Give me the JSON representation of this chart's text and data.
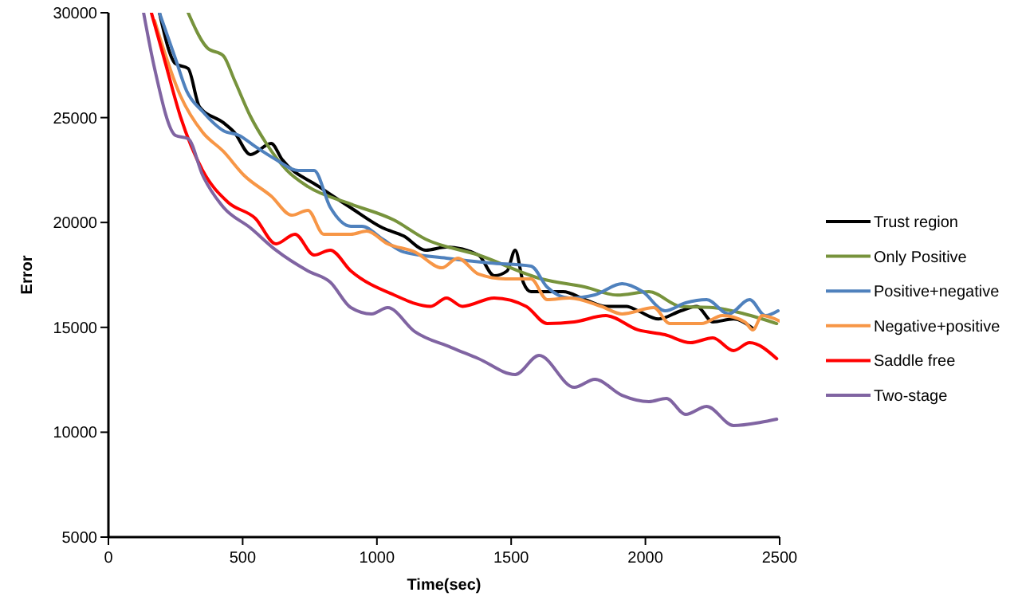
{
  "chart_data": {
    "type": "line",
    "xlabel": "Time(sec)",
    "ylabel": "Error",
    "xlim": [
      0,
      2500
    ],
    "xticks": [
      0,
      500,
      1000,
      1500,
      2000,
      2500
    ],
    "ylim": [
      5000,
      30000
    ],
    "yticks": [
      5000,
      10000,
      15000,
      20000,
      25000,
      30000
    ],
    "grid": false,
    "legend": "right",
    "line_style": "solid",
    "marker": "none",
    "series": [
      {
        "name": "Trust region",
        "color": "#000000",
        "x": [
          190,
          250,
          297,
          339,
          428,
          469,
          529,
          606,
          647,
          784,
          903,
          1022,
          1099,
          1182,
          1259,
          1378,
          1437,
          1485,
          1515,
          1545,
          1574,
          1693,
          1776,
          1853,
          1930,
          1972,
          2049,
          2132,
          2191,
          2251,
          2328,
          2400
        ],
        "values": [
          30000,
          27570,
          27340,
          25520,
          24760,
          24300,
          23240,
          23770,
          23000,
          21710,
          20700,
          19740,
          19360,
          18680,
          18830,
          18450,
          17460,
          17690,
          18680,
          17150,
          16700,
          16700,
          16320,
          16000,
          16000,
          15790,
          15400,
          15790,
          16000,
          15260,
          15400,
          14950
        ]
      },
      {
        "name": "Only Positive",
        "color": "#77933c",
        "x": [
          297,
          368,
          428,
          469,
          529,
          588,
          665,
          743,
          903,
          1063,
          1182,
          1378,
          1616,
          1776,
          1895,
          2013,
          2132,
          2251,
          2370,
          2489
        ],
        "values": [
          30000,
          28330,
          27950,
          26800,
          25060,
          23770,
          22480,
          21710,
          20880,
          20120,
          19200,
          18450,
          17300,
          16920,
          16540,
          16700,
          16000,
          15940,
          15640,
          15180
        ]
      },
      {
        "name": "Positive+negative",
        "color": "#4f81bd",
        "x": [
          190,
          250,
          291,
          351,
          428,
          487,
          547,
          624,
          707,
          766,
          826,
          903,
          944,
          1022,
          1099,
          1259,
          1420,
          1574,
          1634,
          1717,
          1812,
          1913,
          1990,
          2073,
          2150,
          2228,
          2310,
          2388,
          2447,
          2494
        ],
        "values": [
          30000,
          27800,
          26280,
          25290,
          24380,
          24150,
          23620,
          23000,
          22480,
          22480,
          20730,
          19820,
          19820,
          19200,
          18600,
          18300,
          18070,
          17920,
          16920,
          16400,
          16550,
          17080,
          16700,
          15790,
          16170,
          16320,
          15640,
          16320,
          15560,
          15790
        ]
      },
      {
        "name": "Negative+positive",
        "color": "#f79646",
        "x": [
          172,
          268,
          351,
          428,
          505,
          606,
          683,
          743,
          802,
          903,
          962,
          1040,
          1141,
          1242,
          1301,
          1378,
          1479,
          1574,
          1634,
          1717,
          1836,
          1913,
          2031,
          2091,
          2209,
          2287,
          2370,
          2400,
          2435,
          2500
        ],
        "values": [
          29620,
          26050,
          24300,
          23390,
          22250,
          21260,
          20350,
          20580,
          19440,
          19440,
          19590,
          18980,
          18600,
          17840,
          18300,
          17540,
          17310,
          17310,
          16320,
          16400,
          16000,
          15640,
          15940,
          15180,
          15180,
          15560,
          15260,
          14880,
          15560,
          15300
        ]
      },
      {
        "name": "Saddle free",
        "color": "#ff0000",
        "x": [
          160,
          208,
          268,
          351,
          446,
          547,
          624,
          695,
          766,
          826,
          903,
          1063,
          1200,
          1259,
          1319,
          1437,
          1556,
          1634,
          1735,
          1853,
          1972,
          2073,
          2168,
          2251,
          2328,
          2388,
          2489
        ],
        "values": [
          30000,
          27800,
          25060,
          22480,
          20960,
          20200,
          18980,
          19440,
          18450,
          18680,
          17690,
          16550,
          16000,
          16400,
          16000,
          16400,
          16000,
          15180,
          15260,
          15560,
          14880,
          14650,
          14270,
          14500,
          13890,
          14270,
          13510
        ]
      },
      {
        "name": "Two-stage",
        "color": "#8064a2",
        "x": [
          131,
          172,
          250,
          297,
          351,
          428,
          529,
          624,
          743,
          826,
          903,
          980,
          1040,
          1141,
          1277,
          1378,
          1515,
          1604,
          1735,
          1812,
          1913,
          2013,
          2078,
          2150,
          2228,
          2328,
          2429,
          2489
        ],
        "values": [
          30000,
          27340,
          24150,
          24000,
          22250,
          20730,
          19740,
          18680,
          17690,
          17160,
          15940,
          15640,
          15940,
          14800,
          14040,
          13510,
          12750,
          13660,
          12140,
          12520,
          11760,
          11460,
          11610,
          10850,
          11230,
          10320,
          10470,
          10620
        ]
      }
    ]
  }
}
